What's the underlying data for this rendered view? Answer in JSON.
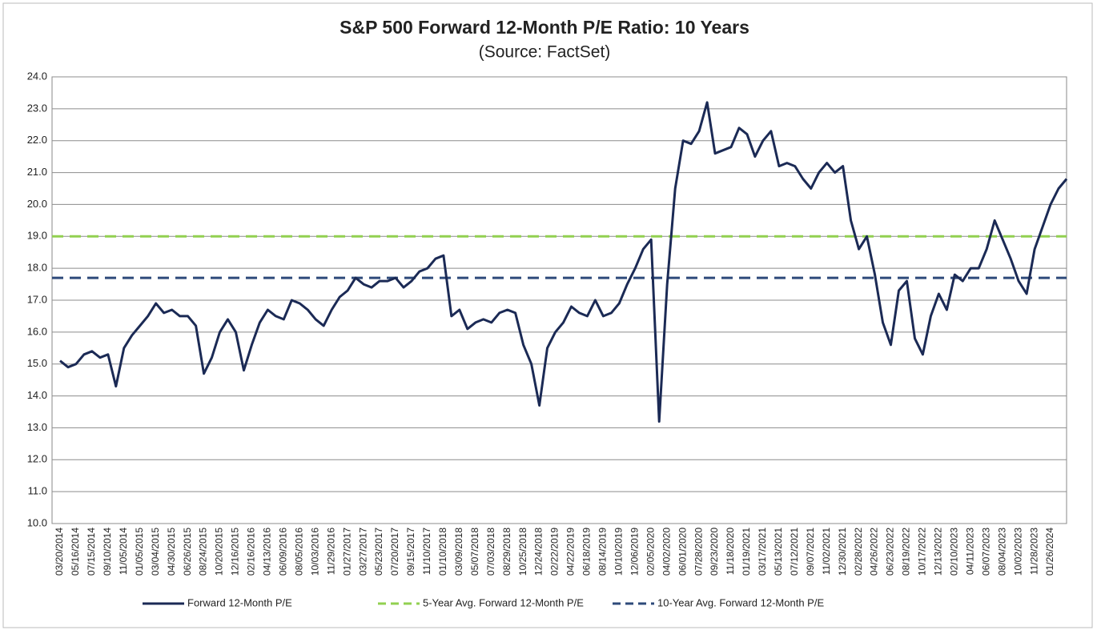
{
  "chart_data": {
    "type": "line",
    "title": "S&P 500 Forward 12-Month P/E Ratio: 10 Years",
    "subtitle": "(Source: FactSet)",
    "categories": [
      "03/20/2014",
      null,
      "05/16/2014",
      null,
      "07/15/2014",
      null,
      "09/10/2014",
      null,
      "11/05/2014",
      null,
      "01/05/2015",
      null,
      "03/04/2015",
      null,
      "04/30/2015",
      null,
      "06/26/2015",
      null,
      "08/24/2015",
      null,
      "10/20/2015",
      null,
      "12/16/2015",
      null,
      "02/16/2016",
      null,
      "04/13/2016",
      null,
      "06/09/2016",
      null,
      "08/05/2016",
      null,
      "10/03/2016",
      null,
      "11/29/2016",
      null,
      "01/27/2017",
      null,
      "03/27/2017",
      null,
      "05/23/2017",
      null,
      "07/20/2017",
      null,
      "09/15/2017",
      null,
      "11/10/2017",
      null,
      "01/10/2018",
      null,
      "03/09/2018",
      null,
      "05/07/2018",
      null,
      "07/03/2018",
      null,
      "08/29/2018",
      null,
      "10/25/2018",
      null,
      "12/24/2018",
      null,
      "02/22/2019",
      null,
      "04/22/2019",
      null,
      "06/18/2019",
      null,
      "08/14/2019",
      null,
      "10/10/2019",
      null,
      "12/06/2019",
      null,
      "02/05/2020",
      null,
      "04/02/2020",
      null,
      "06/01/2020",
      null,
      "07/28/2020",
      null,
      "09/23/2020",
      null,
      "11/18/2020",
      null,
      "01/19/2021",
      null,
      "03/17/2021",
      null,
      "05/13/2021",
      null,
      "07/12/2021",
      null,
      "09/07/2021",
      null,
      "11/02/2021",
      null,
      "12/30/2021",
      null,
      "02/28/2022",
      null,
      "04/26/2022",
      null,
      "06/23/2022",
      null,
      "08/19/2022",
      null,
      "10/17/2022",
      null,
      "12/13/2022",
      null,
      "02/10/2023",
      null,
      "04/11/2023",
      null,
      "06/07/2023",
      null,
      "08/04/2023",
      null,
      "10/02/2023",
      null,
      "11/28/2023",
      null,
      "01/26/2024",
      null,
      null
    ],
    "series": [
      {
        "name": "Forward 12-Month P/E",
        "color": "#1b2a55",
        "values": [
          15.1,
          14.9,
          15.0,
          15.3,
          15.4,
          15.2,
          15.3,
          14.3,
          15.5,
          15.9,
          16.2,
          16.5,
          16.9,
          16.6,
          16.7,
          16.5,
          16.5,
          16.2,
          14.7,
          15.2,
          16.0,
          16.4,
          16.0,
          14.8,
          15.6,
          16.3,
          16.7,
          16.5,
          16.4,
          17.0,
          16.9,
          16.7,
          16.4,
          16.2,
          16.7,
          17.1,
          17.3,
          17.7,
          17.5,
          17.4,
          17.6,
          17.6,
          17.7,
          17.4,
          17.6,
          17.9,
          18.0,
          18.3,
          18.4,
          16.5,
          16.7,
          16.1,
          16.3,
          16.4,
          16.3,
          16.6,
          16.7,
          16.6,
          15.6,
          15.0,
          13.7,
          15.5,
          16.0,
          16.3,
          16.8,
          16.6,
          16.5,
          17.0,
          16.5,
          16.6,
          16.9,
          17.5,
          18.0,
          18.6,
          18.9,
          13.2,
          17.5,
          20.5,
          22.0,
          21.9,
          22.3,
          23.2,
          21.6,
          21.7,
          21.8,
          22.4,
          22.2,
          21.5,
          22.0,
          22.3,
          21.2,
          21.3,
          21.2,
          20.8,
          20.5,
          21.0,
          21.3,
          21.0,
          21.2,
          19.5,
          18.6,
          19.0,
          17.8,
          16.3,
          15.6,
          17.3,
          17.6,
          15.8,
          15.3,
          16.5,
          17.2,
          16.7,
          17.8,
          17.6,
          18.0,
          18.0,
          18.6,
          19.5,
          18.9,
          18.3,
          17.6,
          17.2,
          18.6,
          19.3,
          20.0,
          20.5,
          20.8
        ]
      }
    ],
    "reference_lines": [
      {
        "name": "5-Year Avg. Forward 12-Month P/E",
        "value": 19.0,
        "color": "#92d050"
      },
      {
        "name": "10-Year Avg. Forward 12-Month P/E",
        "value": 17.7,
        "color": "#2e4a7a"
      }
    ],
    "ylim": [
      10,
      24
    ],
    "yticks": [
      {
        "value": 10,
        "label": "10.0"
      },
      {
        "value": 11,
        "label": "11.0"
      },
      {
        "value": 12,
        "label": "12.0"
      },
      {
        "value": 13,
        "label": "13.0"
      },
      {
        "value": 14,
        "label": "14.0"
      },
      {
        "value": 15,
        "label": "15.0"
      },
      {
        "value": 16,
        "label": "16.0"
      },
      {
        "value": 17,
        "label": "17.0"
      },
      {
        "value": 18,
        "label": "18.0"
      },
      {
        "value": 19,
        "label": "19.0"
      },
      {
        "value": 20,
        "label": "20.0"
      },
      {
        "value": 21,
        "label": "21.0"
      },
      {
        "value": 22,
        "label": "22.0"
      },
      {
        "value": 23,
        "label": "23.0"
      },
      {
        "value": 24,
        "label": "24.0"
      }
    ],
    "grid": true,
    "legend": "bottom"
  }
}
